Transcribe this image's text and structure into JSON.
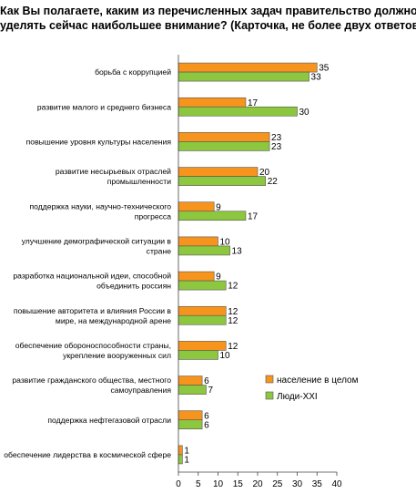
{
  "title": {
    "line1": "Как Вы полагаете, каким из перечисленных задач правительство должно",
    "line2": "уделять сейчас наибольшее внимание? (Карточка, не более двух ответов.)"
  },
  "chart_data": {
    "type": "bar",
    "orientation": "horizontal",
    "categories": [
      [
        "борьба с коррупцией"
      ],
      [
        "развитие малого и среднего бизнеса"
      ],
      [
        "повышение уровня культуры населения"
      ],
      [
        "развитие несырьевых отраслей",
        "промышленности"
      ],
      [
        "поддержка науки, научно-технического",
        "прогресса"
      ],
      [
        "улучшение демографической ситуации в",
        "стране"
      ],
      [
        "разработка национальной идеи, способной",
        "объединить россиян"
      ],
      [
        "повышение авторитета и влияния России в",
        "мире, на международной арене"
      ],
      [
        "обеспечение обороноспособности страны,",
        "укрепление вооруженных сил"
      ],
      [
        "развитие гражданского общества, местного",
        "самоуправления"
      ],
      [
        "поддержка нефтегазовой отрасли"
      ],
      [
        "обеспечение лидерства в космической сфере"
      ]
    ],
    "series": [
      {
        "name": "население в целом",
        "color": "#f7941d",
        "values": [
          35,
          17,
          23,
          20,
          9,
          10,
          9,
          12,
          12,
          6,
          6,
          1
        ]
      },
      {
        "name": "Люди-XXI",
        "color": "#8dc63f",
        "values": [
          33,
          30,
          23,
          22,
          17,
          13,
          12,
          12,
          10,
          7,
          6,
          1
        ]
      }
    ],
    "x_ticks": [
      0,
      5,
      10,
      15,
      20,
      25,
      30,
      35,
      40
    ],
    "xlim": [
      0,
      40
    ],
    "data_labels": true,
    "grid": false,
    "legend_position": "right"
  }
}
